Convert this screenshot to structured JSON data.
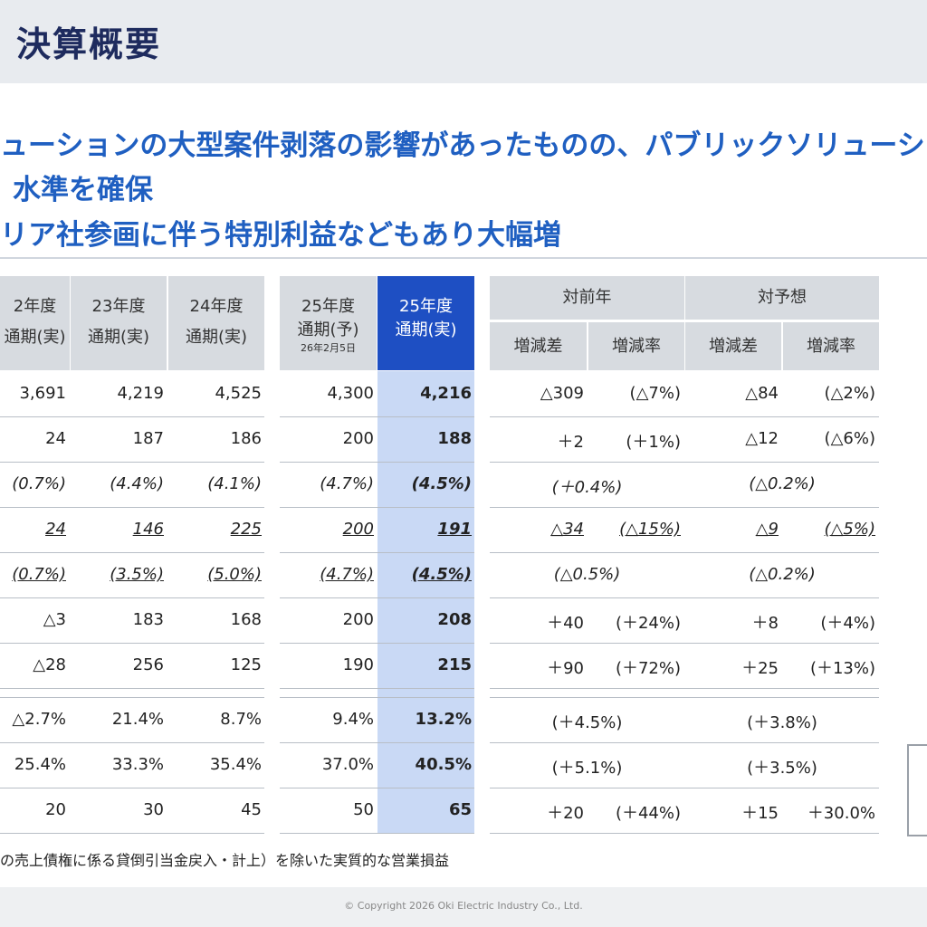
{
  "page": {
    "title": "決算概要",
    "copyright": "© Copyright 2026 Oki Electric Industry Co., Ltd."
  },
  "headlines": [
    "ューションの大型案件剥落の影響があったものの、パブリックソリューショ",
    "水準を確保",
    "リア社参画に伴う特別利益などもあり大幅増"
  ],
  "headers": {
    "fy22": [
      "2年度",
      "通期(実)"
    ],
    "fy23": [
      "23年度",
      "通期(実)"
    ],
    "fy24": [
      "24年度",
      "通期(実)"
    ],
    "fy25f": [
      "25年度",
      "通期(予)",
      "26年2月5日"
    ],
    "fy25a": [
      "25年度",
      "通期(実)"
    ],
    "yoy": "対前年",
    "vsf": "対予想",
    "diff": "増減差",
    "rate": "増減率"
  },
  "rows": [
    {
      "style": "",
      "fy22": "3,691",
      "fy23": "4,219",
      "fy24": "4,525",
      "fy25f": "4,300",
      "fy25a": "4,216",
      "yoy_d": "△309",
      "yoy_r": "(△7%)",
      "vs_d": "△84",
      "vs_r": "(△2%)"
    },
    {
      "style": "",
      "fy22": "24",
      "fy23": "187",
      "fy24": "186",
      "fy25f": "200",
      "fy25a": "188",
      "yoy_d": "＋2",
      "yoy_r": "(＋1%)",
      "vs_d": "△12",
      "vs_r": "(△6%)"
    },
    {
      "style": "it",
      "fy22": "(0.7%)",
      "fy23": "(4.4%)",
      "fy24": "(4.1%)",
      "fy25f": "(4.7%)",
      "fy25a": "(4.5%)",
      "yoy_c": "(＋0.4%)",
      "vs_c": "(△0.2%)"
    },
    {
      "style": "it ul",
      "fy22": "24",
      "fy23": "146",
      "fy24": "225",
      "fy25f": "200",
      "fy25a": "191",
      "yoy_d": "△34",
      "yoy_r": "(△15%)",
      "vs_d": "△9",
      "vs_r": "(△5%)"
    },
    {
      "style": "it ul",
      "fy22": "(0.7%)",
      "fy23": "(3.5%)",
      "fy24": "(5.0%)",
      "fy25f": "(4.7%)",
      "fy25a": "(4.5%)",
      "yoy_c": "(△0.5%)",
      "vs_c": "(△0.2%)"
    },
    {
      "style": "",
      "fy22": "△3",
      "fy23": "183",
      "fy24": "168",
      "fy25f": "200",
      "fy25a": "208",
      "yoy_d": "＋40",
      "yoy_r": "(＋24%)",
      "vs_d": "＋8",
      "vs_r": "(＋4%)"
    },
    {
      "style": "",
      "fy22": "△28",
      "fy23": "256",
      "fy24": "125",
      "fy25f": "190",
      "fy25a": "215",
      "yoy_d": "＋90",
      "yoy_r": "(＋72%)",
      "vs_d": "＋25",
      "vs_r": "(＋13%)"
    },
    {
      "style": "",
      "fy22": "△2.7%",
      "fy23": "21.4%",
      "fy24": "8.7%",
      "fy25f": "9.4%",
      "fy25a": "13.2%",
      "yoy_c": "(＋4.5%)",
      "vs_c": "(＋3.8%)"
    },
    {
      "style": "",
      "fy22": "25.4%",
      "fy23": "33.3%",
      "fy24": "35.4%",
      "fy25f": "37.0%",
      "fy25a": "40.5%",
      "yoy_c": "(＋5.1%)",
      "vs_c": "(＋3.5%)"
    },
    {
      "style": "",
      "fy22": "20",
      "fy23": "30",
      "fy24": "45",
      "fy25f": "50",
      "fy25a": "65",
      "yoy_d": "＋20",
      "yoy_r": "(＋44%)",
      "vs_d": "＋15",
      "vs_r": "＋30.0%"
    }
  ],
  "footnote": "の売上債権に係る貸倒引当金戻入・計上）を除いた実質的な営業損益"
}
